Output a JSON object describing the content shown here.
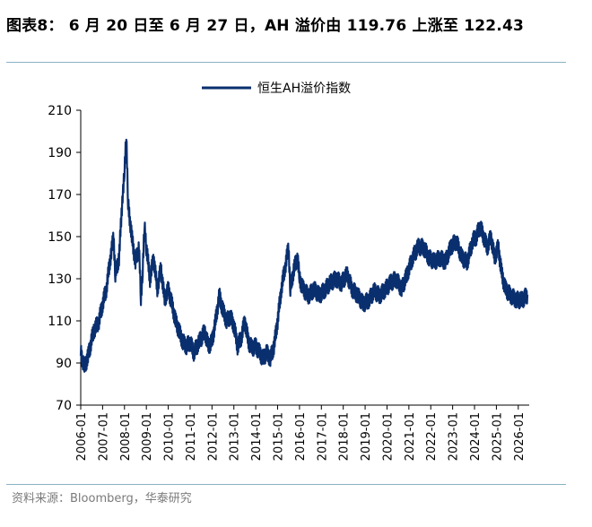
{
  "title": "图表8： 6 月 20 日至 6 月 27 日，AH 溢价由 119.76 上涨至 122.43",
  "source": "资料来源：Bloomberg，华泰研究",
  "colors": {
    "series": "#0a2f6e",
    "rule": "#8ab1c4",
    "source_text": "#7a7a7a"
  },
  "chart_data": {
    "type": "line",
    "title": "",
    "xlabel": "",
    "ylabel": "",
    "ylim": [
      70,
      210
    ],
    "yticks": [
      70,
      90,
      110,
      130,
      150,
      170,
      190,
      210
    ],
    "xlim": [
      "2006-01",
      "2026-07"
    ],
    "xticks": [
      "2006-01",
      "2007-01",
      "2008-01",
      "2009-01",
      "2010-01",
      "2011-01",
      "2012-01",
      "2013-01",
      "2014-01",
      "2015-01",
      "2016-01",
      "2017-01",
      "2018-01",
      "2019-01",
      "2020-01",
      "2021-01",
      "2022-01",
      "2023-01",
      "2024-01",
      "2025-01",
      "2026-01"
    ],
    "legend": "top-center",
    "grid": false,
    "series": [
      {
        "name": "恒生AH溢价指数",
        "color": "#0a2f6e",
        "x": [
          "2006-01",
          "2006-03",
          "2006-05",
          "2006-08",
          "2006-11",
          "2007-01",
          "2007-03",
          "2007-05",
          "2007-07",
          "2007-08",
          "2007-10",
          "2007-12",
          "2008-01",
          "2008-02",
          "2008-03",
          "2008-05",
          "2008-07",
          "2008-09",
          "2008-10",
          "2008-11",
          "2008-12",
          "2009-01",
          "2009-03",
          "2009-05",
          "2009-07",
          "2009-09",
          "2009-11",
          "2010-01",
          "2010-03",
          "2010-05",
          "2010-07",
          "2010-09",
          "2010-11",
          "2011-01",
          "2011-03",
          "2011-06",
          "2011-09",
          "2011-11",
          "2012-01",
          "2012-03",
          "2012-05",
          "2012-07",
          "2012-09",
          "2012-11",
          "2013-01",
          "2013-03",
          "2013-05",
          "2013-07",
          "2013-09",
          "2013-11",
          "2014-01",
          "2014-03",
          "2014-05",
          "2014-07",
          "2014-09",
          "2014-11",
          "2015-01",
          "2015-03",
          "2015-05",
          "2015-07",
          "2015-08",
          "2015-10",
          "2015-12",
          "2016-01",
          "2016-03",
          "2016-06",
          "2016-09",
          "2016-12",
          "2017-03",
          "2017-06",
          "2017-09",
          "2017-12",
          "2018-03",
          "2018-06",
          "2018-09",
          "2018-12",
          "2019-03",
          "2019-06",
          "2019-09",
          "2019-12",
          "2020-03",
          "2020-06",
          "2020-09",
          "2020-12",
          "2021-03",
          "2021-06",
          "2021-09",
          "2021-12",
          "2022-03",
          "2022-06",
          "2022-09",
          "2022-12",
          "2023-03",
          "2023-06",
          "2023-09",
          "2023-12",
          "2024-02",
          "2024-04",
          "2024-06",
          "2024-08",
          "2024-10",
          "2024-12",
          "2025-02",
          "2025-04",
          "2025-06",
          "2025-09",
          "2025-12",
          "2026-03",
          "2026-06"
        ],
        "y": [
          95,
          88,
          93,
          105,
          110,
          118,
          125,
          138,
          150,
          132,
          140,
          170,
          180,
          200,
          165,
          150,
          138,
          145,
          120,
          135,
          155,
          145,
          130,
          140,
          125,
          135,
          120,
          125,
          118,
          110,
          105,
          100,
          98,
          100,
          95,
          100,
          105,
          98,
          100,
          110,
          122,
          115,
          110,
          112,
          108,
          98,
          102,
          110,
          100,
          97,
          98,
          95,
          92,
          95,
          92,
          98,
          110,
          125,
          135,
          145,
          125,
          135,
          140,
          130,
          125,
          122,
          125,
          122,
          125,
          128,
          130,
          128,
          132,
          125,
          122,
          118,
          120,
          124,
          122,
          125,
          128,
          130,
          125,
          132,
          140,
          145,
          145,
          140,
          138,
          140,
          138,
          145,
          148,
          140,
          138,
          148,
          150,
          155,
          150,
          145,
          150,
          140,
          145,
          132,
          125,
          122,
          120,
          119.76,
          122.43
        ]
      }
    ]
  }
}
